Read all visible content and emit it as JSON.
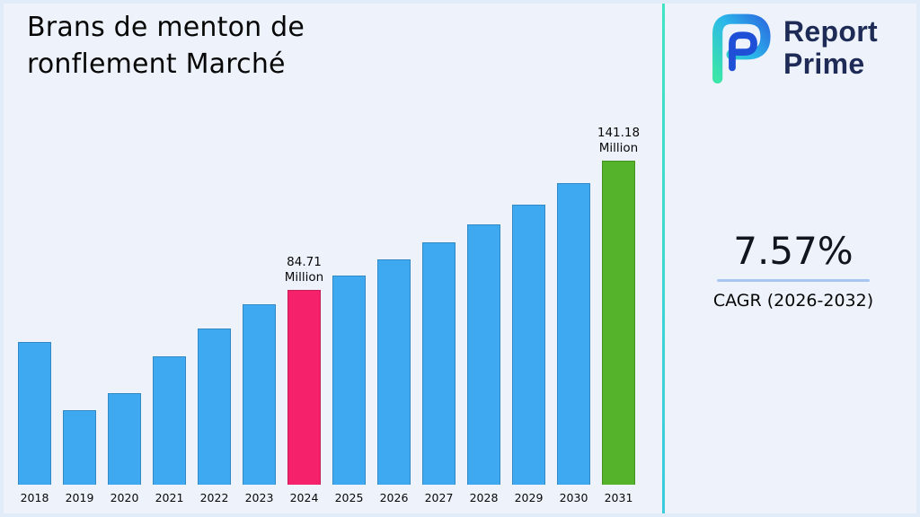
{
  "title": "Brans de menton de ronflement Marché",
  "title_lines": [
    "Brans de menton de",
    "ronflement Marché"
  ],
  "logo": {
    "line1": "Report",
    "line2": "Prime"
  },
  "cagr": {
    "value": "7.57%",
    "label": "CAGR (2026-2032)"
  },
  "colors": {
    "background": "#eef3fb",
    "bar_blue": "#3EA8F0",
    "bar_pink": "#F5216B",
    "bar_green": "#54B32A",
    "divider_top": "#3FE4C4",
    "divider_bottom": "#3BCBDD",
    "cagr_underline": "#A8C6F2",
    "logo_text": "#1D2B56",
    "logo_gradient": [
      "#3CE6A8",
      "#2BB7EA",
      "#2B6FE0"
    ],
    "logo_inner": "#1E4FD6"
  },
  "chart_data": {
    "type": "bar",
    "title": "Brans de menton de ronflement Marché",
    "unit": "Million",
    "categories": [
      "2018",
      "2019",
      "2020",
      "2021",
      "2022",
      "2023",
      "2024",
      "2025",
      "2026",
      "2027",
      "2028",
      "2029",
      "2030",
      "2031"
    ],
    "values": [
      62,
      32.5,
      40,
      56,
      68,
      78.7,
      84.71,
      91.12,
      98.02,
      105.44,
      113.42,
      122.01,
      131.25,
      141.18
    ],
    "annotations": [
      {
        "category": "2024",
        "lines": [
          "84.71",
          "Million"
        ]
      },
      {
        "category": "2031",
        "lines": [
          "141.18",
          "Million"
        ]
      }
    ],
    "highlight_colors": {
      "2024": "#F5216B",
      "2031": "#54B32A"
    },
    "bar_color": "#3EA8F0",
    "xlabel": "",
    "ylabel": "",
    "ylim": [
      0,
      150
    ],
    "grid": false,
    "legend": "none"
  }
}
